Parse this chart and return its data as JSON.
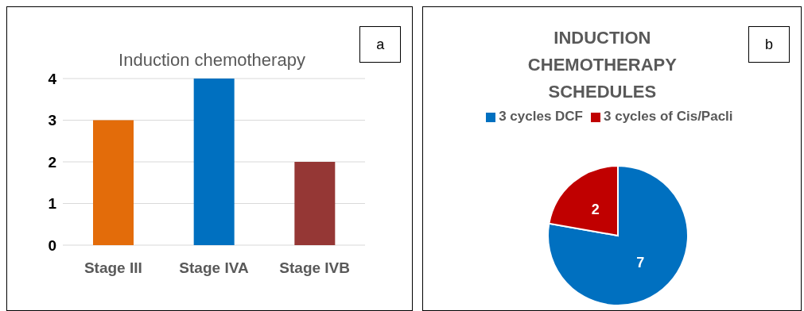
{
  "chart_data": [
    {
      "type": "bar",
      "title": "Induction chemotherapy",
      "categories": [
        "Stage III",
        "Stage IVA",
        "Stage IVB"
      ],
      "values": [
        3,
        4,
        2
      ],
      "colors": [
        "#e36c0a",
        "#0070c0",
        "#953735"
      ],
      "ylim": [
        0,
        4
      ],
      "yticks": [
        0,
        1,
        2,
        3,
        4
      ],
      "grid": "y",
      "legend": false,
      "annotations": [
        "a"
      ]
    },
    {
      "type": "pie",
      "title": "INDUCTION CHEMOTHERAPY SCHEDULES",
      "categories": [
        "3 cycles DCF",
        "3 cycles of Cis/Pacli"
      ],
      "values": [
        7,
        2
      ],
      "colors": [
        "#0070c0",
        "#c00000"
      ],
      "data_labels": true,
      "legend": "top",
      "annotations": [
        "b"
      ]
    }
  ]
}
